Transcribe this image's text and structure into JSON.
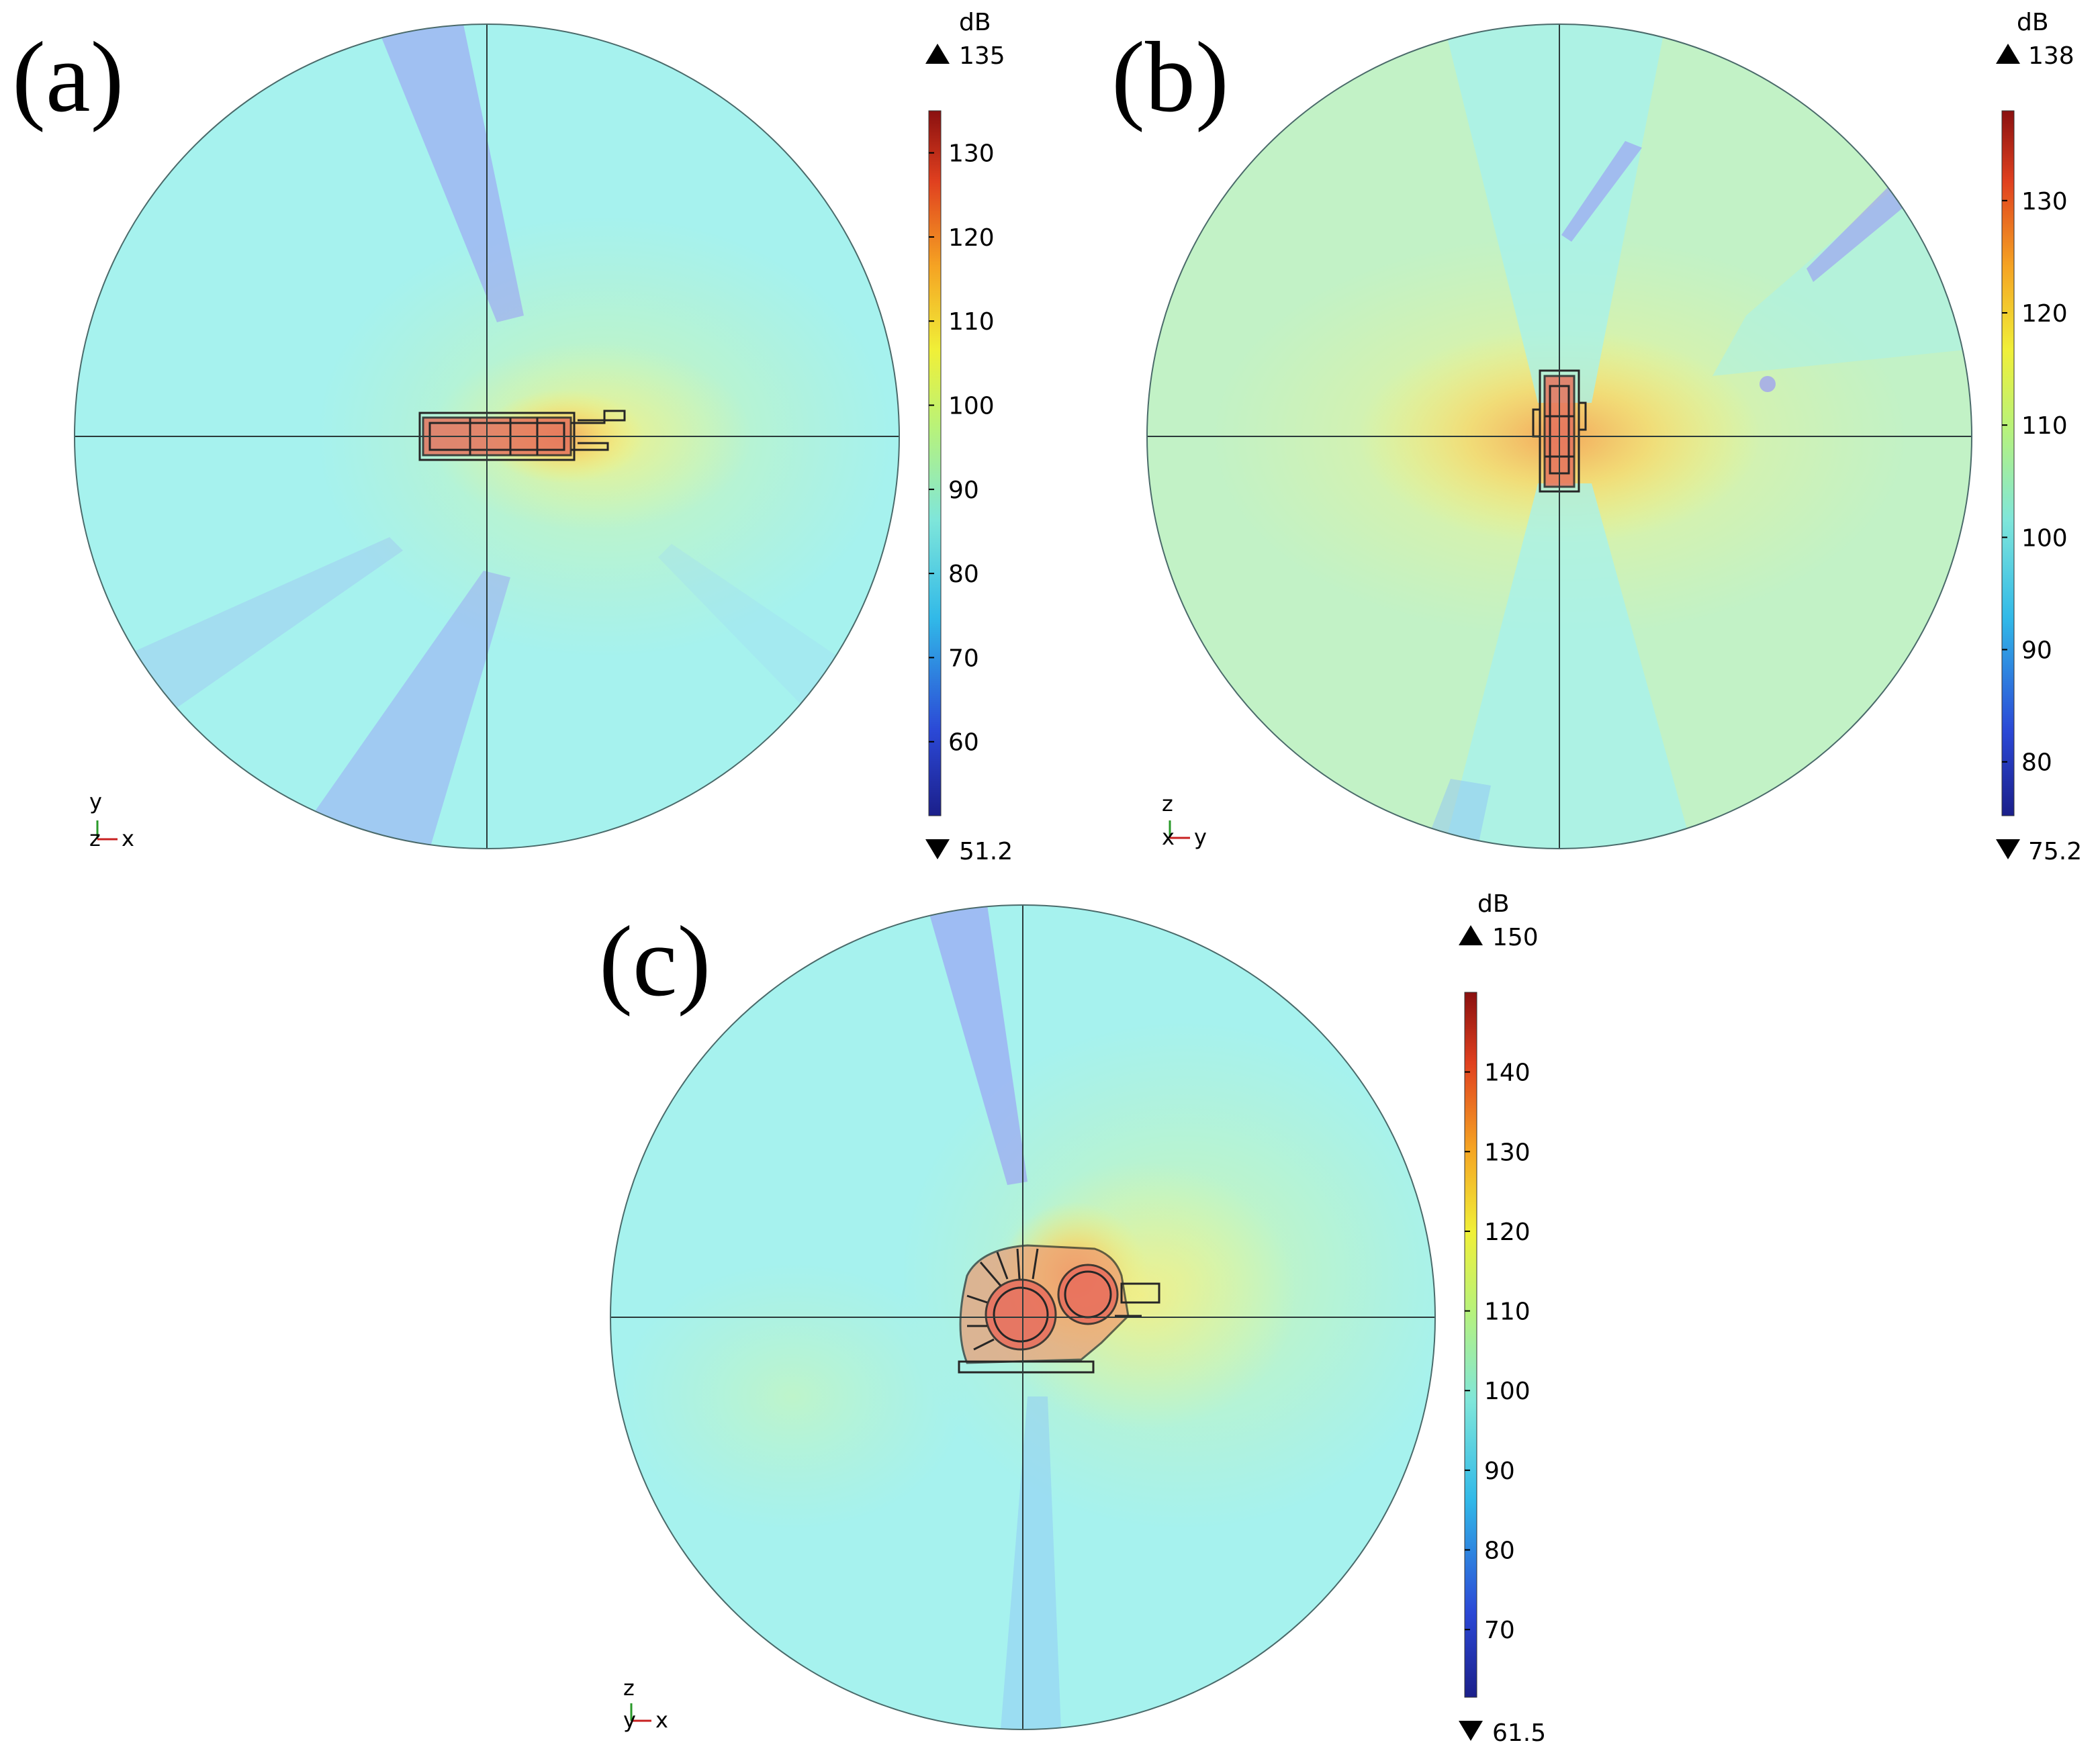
{
  "figure": {
    "colors": {
      "background": "#ffffff",
      "field_base": "#a6f2ee",
      "crosshair": "#2b3a3a",
      "outline": "#262626",
      "hot": "#d94a3a",
      "warm": "#f6c75a",
      "yellow": "#f3f27a",
      "cold": "#9a98f6"
    },
    "panels": [
      {
        "id": "a",
        "label": "(a)",
        "axis_up": "y",
        "axis_right": "x",
        "axis_out": "z",
        "colorbar": {
          "unit": "dB",
          "max_label": "135",
          "min_label": "51.2",
          "min": 51.2,
          "max": 135,
          "ticks": [
            "130",
            "120",
            "110",
            "100",
            "90",
            "80",
            "70",
            "60"
          ]
        }
      },
      {
        "id": "b",
        "label": "(b)",
        "axis_up": "z",
        "axis_right": "y",
        "axis_out": "x",
        "colorbar": {
          "unit": "dB",
          "max_label": "138",
          "min_label": "75.2",
          "min": 75.2,
          "max": 138,
          "ticks": [
            "130",
            "120",
            "110",
            "100",
            "90",
            "80"
          ]
        }
      },
      {
        "id": "c",
        "label": "(c)",
        "axis_up": "z",
        "axis_right": "x",
        "axis_out": "y",
        "colorbar": {
          "unit": "dB",
          "max_label": "150",
          "min_label": "61.5",
          "min": 61.5,
          "max": 150,
          "ticks": [
            "140",
            "130",
            "120",
            "110",
            "100",
            "90",
            "80",
            "70"
          ]
        }
      }
    ]
  }
}
